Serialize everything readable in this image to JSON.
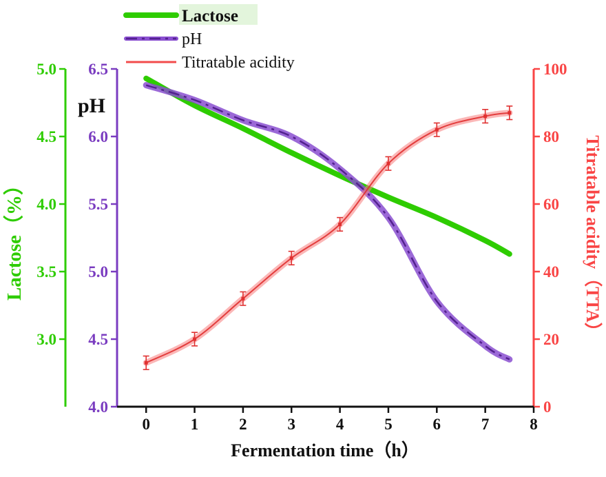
{
  "background": "#ffffff",
  "chart_data": {
    "type": "line",
    "title": "",
    "xlabel": "Fermentation time（h）",
    "x": [
      0,
      1,
      2,
      3,
      4,
      5,
      6,
      7,
      7.5
    ],
    "x_ticks": [
      0,
      1,
      2,
      3,
      4,
      5,
      6,
      7,
      8
    ],
    "x_range": [
      -0.6,
      8
    ],
    "series": [
      {
        "name": "Lactose",
        "axis": "lactose",
        "color": "#2ecc00",
        "color_dark": "#24a500",
        "width": 8,
        "style": "solid",
        "values": [
          4.93,
          4.73,
          4.56,
          4.38,
          4.21,
          4.05,
          3.9,
          3.73,
          3.63
        ],
        "error": 0.03
      },
      {
        "name": "pH",
        "axis": "ph",
        "color": "#8a4fd0",
        "color_dark": "#53218f",
        "width": 9,
        "style": "dashed-core",
        "values": [
          6.38,
          6.27,
          6.12,
          6.0,
          5.76,
          5.4,
          4.78,
          4.45,
          4.35
        ],
        "error": 0.03
      },
      {
        "name": "Titratable acidity",
        "axis": "tta",
        "color": "#f87c7c",
        "color_dark": "#e03030",
        "width": 9,
        "style": "band-core",
        "values": [
          13,
          20,
          32,
          44,
          54,
          72,
          82,
          86,
          87
        ],
        "error": 2
      }
    ],
    "axes": {
      "lactose": {
        "label": "Lactose（%）",
        "color": "#2ecc00",
        "range": [
          2.5,
          5.0
        ],
        "ticks": [
          5.0,
          4.5,
          4.0,
          3.5,
          3.0
        ],
        "tick_format": "1dp"
      },
      "ph": {
        "label": "pH",
        "color": "#7a3cc0",
        "range": [
          4.0,
          6.5
        ],
        "ticks": [
          6.5,
          6.0,
          5.5,
          5.0,
          4.5,
          4.0
        ],
        "tick_format": "1dp"
      },
      "tta": {
        "label": "Titratable acidity（TTA）",
        "color": "#f94545",
        "range": [
          0,
          100
        ],
        "ticks": [
          100,
          80,
          60,
          40,
          20,
          0
        ],
        "tick_format": "int"
      }
    },
    "x_axis": {
      "color": "#111111"
    },
    "legend": {
      "position": "top-left",
      "items": [
        "Lactose",
        "pH",
        "Titratable acidity"
      ]
    }
  }
}
